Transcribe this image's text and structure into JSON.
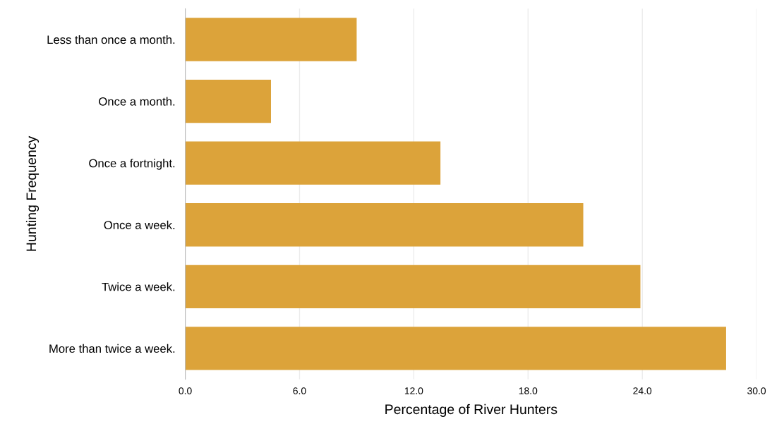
{
  "chart_data": {
    "type": "bar",
    "orientation": "horizontal",
    "xlabel": "Percentage of River Hunters",
    "ylabel": "Hunting Frequency",
    "categories": [
      "Less than once a month.",
      "Once a month.",
      "Once a fortnight.",
      "Once a week.",
      "Twice a week.",
      "More than twice a week."
    ],
    "values": [
      9.0,
      4.5,
      13.4,
      20.9,
      23.9,
      28.4
    ],
    "color": "#dca33a",
    "xlim": [
      0,
      30
    ],
    "xticks": [
      {
        "value": 0,
        "label": "0.0"
      },
      {
        "value": 6,
        "label": "6.0"
      },
      {
        "value": 12,
        "label": "12.0"
      },
      {
        "value": 18,
        "label": "18.0"
      },
      {
        "value": 24,
        "label": "24.0"
      },
      {
        "value": 30,
        "label": "30.0"
      }
    ],
    "grid": "x"
  }
}
